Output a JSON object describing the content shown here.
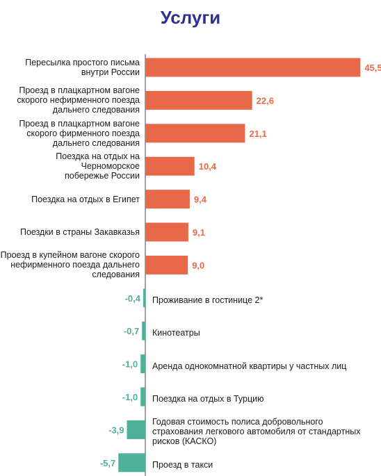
{
  "chart_data": {
    "type": "bar",
    "orientation": "horizontal",
    "title": "Услуги",
    "categories": [
      "Пересылка простого письма внутри России",
      "Проезд в плацкартном вагоне скорого нефирменного поезда дальнего следования",
      "Проезд в плацкартном вагоне скорого фирменного поезда дальнего следования",
      "Поездка на отдых на Черноморское побережье России",
      "Поездка на отдых в Египет",
      "Поездки в страны Закавказья",
      "Проезд в купейном вагоне скорого нефирменного поезда дальнего следования",
      "Проживание в гостинице 2*",
      "Кинотеатры",
      "Аренда однокомнатной квартиры у частных лиц",
      "Поездка на отдых в Турцию",
      "Годовая стоимость полиса добровольного страхования легкового автомобиля от стандартных рисков (КАСКО)",
      "Проезд в такси"
    ],
    "values": [
      45.5,
      22.6,
      21.1,
      10.4,
      9.4,
      9.1,
      9.0,
      -0.4,
      -0.7,
      -1.0,
      -1.0,
      -3.9,
      -5.7
    ],
    "value_labels": [
      "45,5",
      "22,6",
      "21,1",
      "10,4",
      "9,4",
      "9,1",
      "9,0",
      "-0,4",
      "-0,7",
      "-1,0",
      "-1,0",
      "-3,9",
      "-5,7"
    ],
    "label_lines": [
      [
        "Пересылка простого письма",
        "внутри России"
      ],
      [
        "Проезд в плацкартном вагоне",
        "скорого нефирменного поезда",
        "дальнего следования"
      ],
      [
        "Проезд в плацкартном вагоне",
        "скорого фирменного поезда",
        "дальнего следования"
      ],
      [
        "Поездка на отдых на Черноморское",
        "побережье России"
      ],
      [
        "Поездка на отдых в Египет"
      ],
      [
        "Поездки в страны Закавказья"
      ],
      [
        "Проезд в купейном вагоне скорого",
        "нефирменного поезда дальнего",
        "следования"
      ],
      [
        "Проживание в гостинице 2*"
      ],
      [
        "Кинотеатры"
      ],
      [
        "Аренда однокомнатной квартиры у частных лиц"
      ],
      [
        "Поездка на отдых в Турцию"
      ],
      [
        "Годовая стоимость полиса добровольного",
        "страхования легкового автомобиля от стандартных",
        "рисков (КАСКО)"
      ],
      [
        "Проезд в такси"
      ]
    ],
    "colors": {
      "positive": "#e8694a",
      "negative": "#4fb09c",
      "axis": "#444444",
      "title": "#2e3192"
    },
    "grid": false,
    "legend": "none"
  }
}
